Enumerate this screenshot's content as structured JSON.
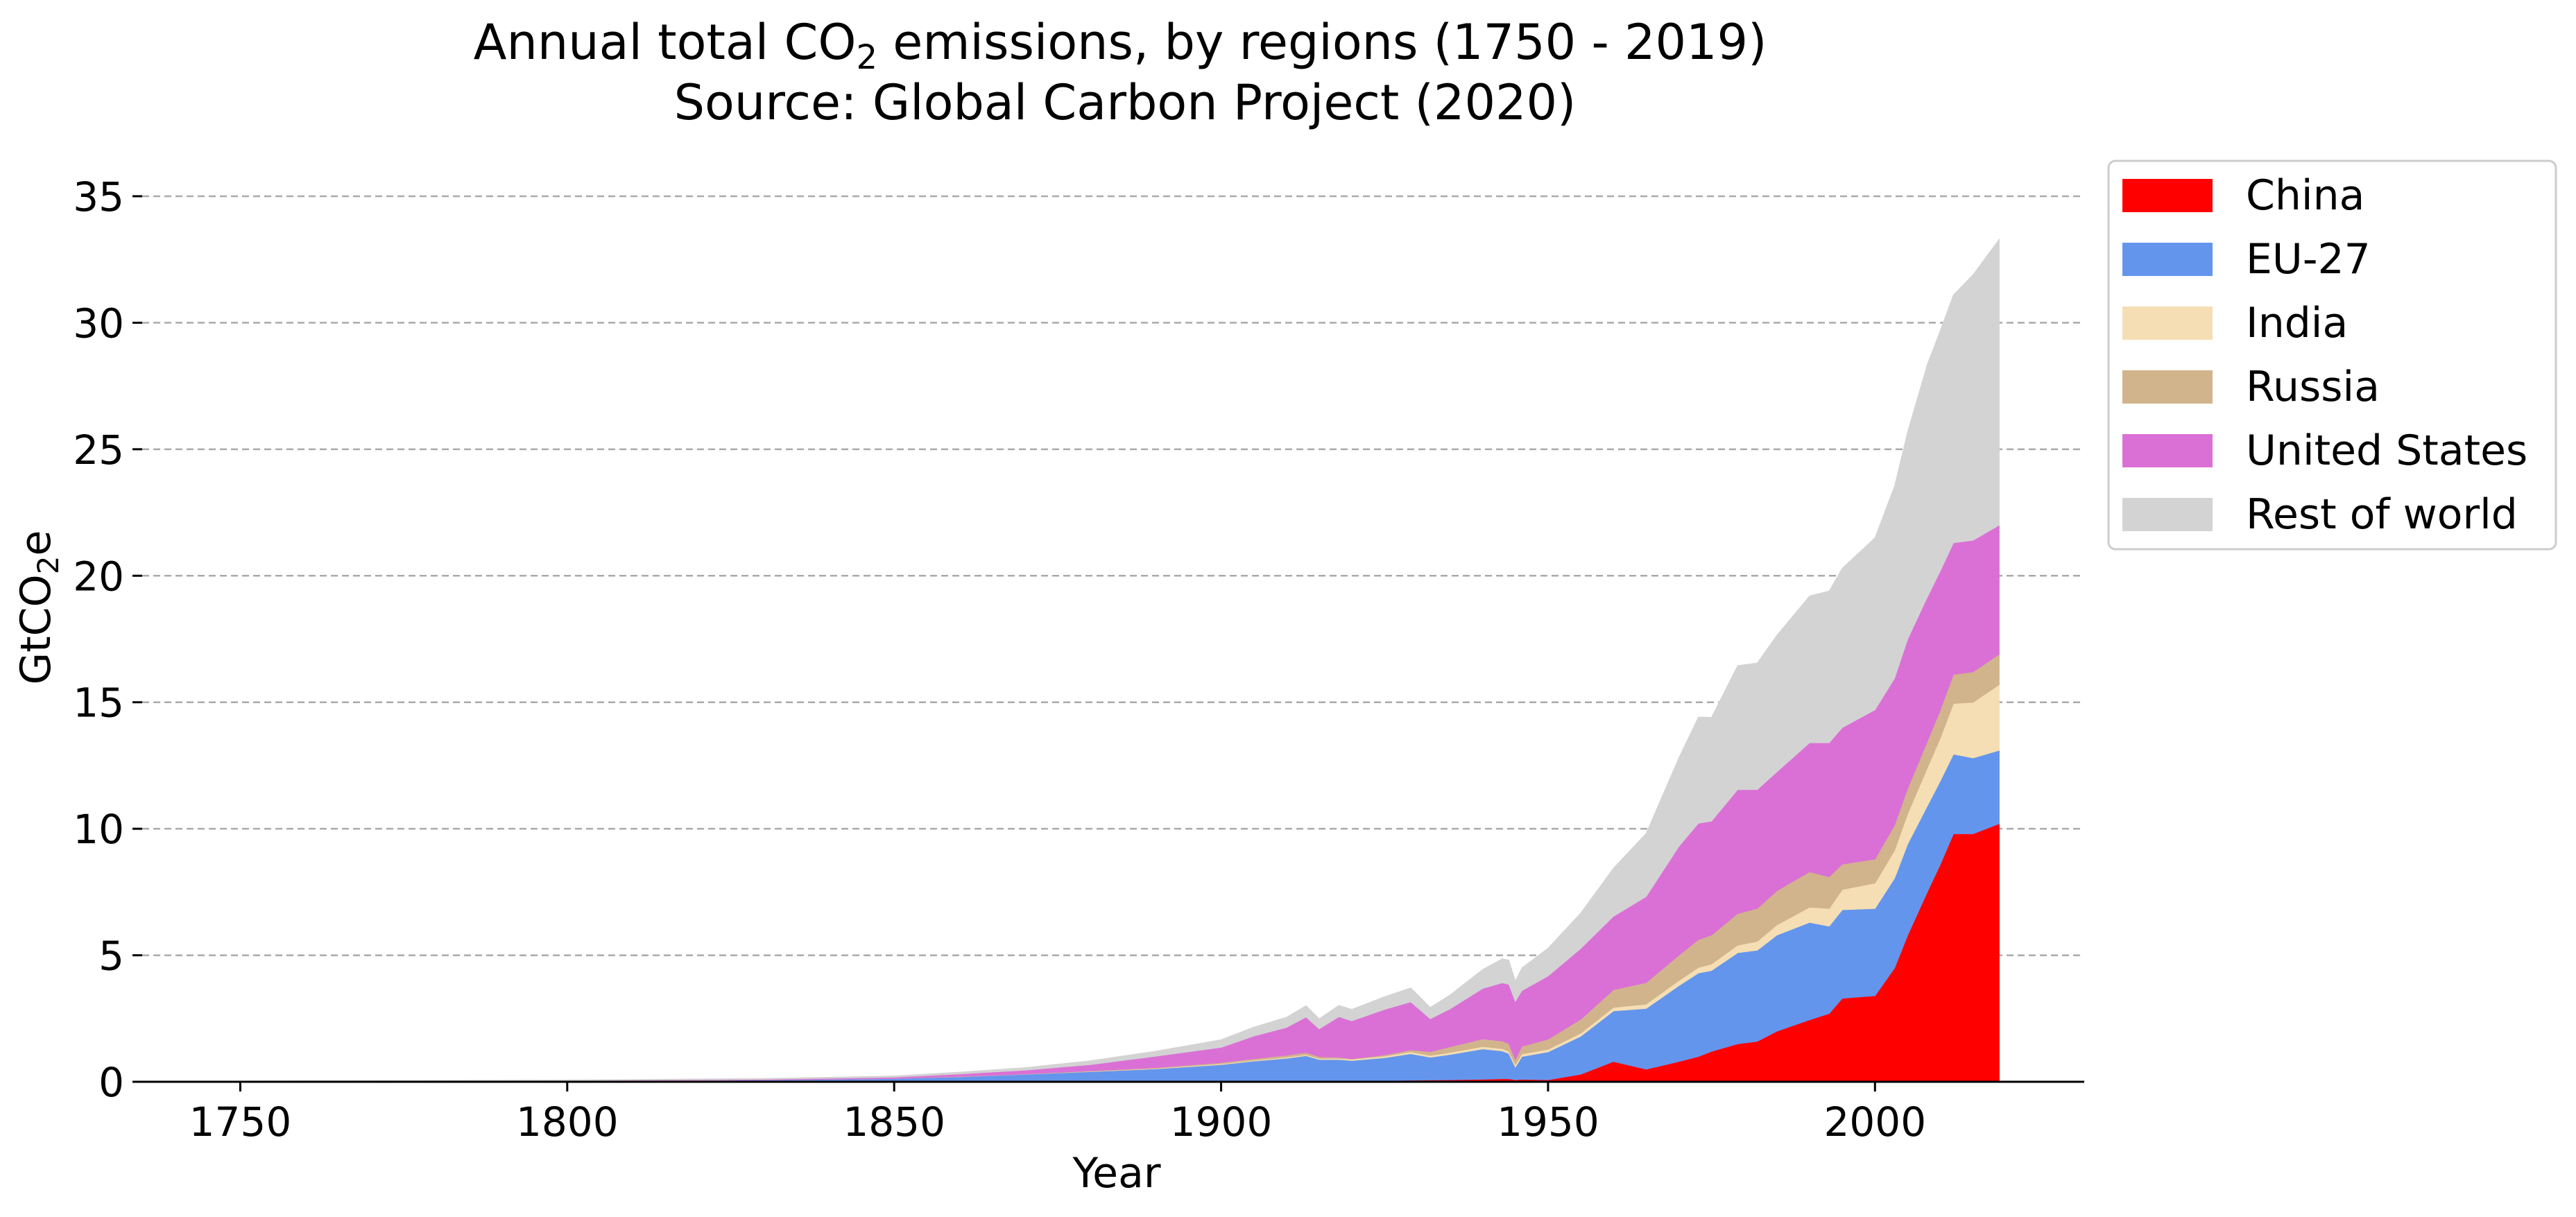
{
  "chart_data": {
    "type": "area",
    "stacked": true,
    "title_line1_main": "Annual total CO",
    "title_line1_sub": "2",
    "title_line1_rest": " emissions, by regions (1750 - 2019)",
    "title_line2": "Source: Global Carbon Project (2020)",
    "xlabel": "Year",
    "ylabel_main": "GtCO",
    "ylabel_sub": "2",
    "ylabel_rest": "e",
    "xlim": [
      1735,
      2032
    ],
    "ylim": [
      0,
      37
    ],
    "xticks": [
      "1750",
      "1800",
      "1850",
      "1900",
      "1950",
      "2000"
    ],
    "yticks": [
      "0",
      "5",
      "10",
      "15",
      "20",
      "25",
      "30",
      "35"
    ],
    "grid": "horizontal dashed",
    "legend_position": "outside right, top",
    "x": [
      1750,
      1800,
      1830,
      1850,
      1860,
      1870,
      1880,
      1890,
      1900,
      1905,
      1910,
      1913,
      1915,
      1918,
      1920,
      1925,
      1929,
      1932,
      1935,
      1940,
      1943,
      1944,
      1945,
      1946,
      1950,
      1955,
      1960,
      1965,
      1970,
      1973,
      1975,
      1979,
      1982,
      1985,
      1990,
      1993,
      1995,
      2000,
      2003,
      2005,
      2008,
      2010,
      2012,
      2015,
      2019
    ],
    "series": [
      {
        "name": "China",
        "color": "#ff0000",
        "values": [
          0,
          0,
          0,
          0,
          0,
          0,
          0,
          0.01,
          0.02,
          0.02,
          0.03,
          0.03,
          0.03,
          0.03,
          0.04,
          0.05,
          0.06,
          0.07,
          0.08,
          0.1,
          0.12,
          0.12,
          0.08,
          0.1,
          0.08,
          0.3,
          0.8,
          0.5,
          0.8,
          1.0,
          1.2,
          1.5,
          1.6,
          2.0,
          2.45,
          2.7,
          3.3,
          3.4,
          4.5,
          5.8,
          7.5,
          8.6,
          9.8,
          9.8,
          10.2
        ]
      },
      {
        "name": "EU-27",
        "color": "#6495ed",
        "values": [
          0.01,
          0.04,
          0.07,
          0.13,
          0.2,
          0.3,
          0.4,
          0.5,
          0.66,
          0.8,
          0.9,
          1.0,
          0.85,
          0.85,
          0.8,
          0.9,
          1.05,
          0.9,
          1.0,
          1.2,
          1.1,
          1.0,
          0.5,
          0.9,
          1.1,
          1.5,
          2.0,
          2.4,
          3.0,
          3.3,
          3.2,
          3.6,
          3.6,
          3.8,
          3.85,
          3.45,
          3.5,
          3.45,
          3.55,
          3.6,
          3.4,
          3.3,
          3.15,
          3.0,
          2.9
        ]
      },
      {
        "name": "India",
        "color": "#f5deb3",
        "values": [
          0,
          0,
          0,
          0,
          0,
          0,
          0.01,
          0.02,
          0.03,
          0.03,
          0.04,
          0.04,
          0.04,
          0.04,
          0.05,
          0.06,
          0.07,
          0.07,
          0.08,
          0.09,
          0.09,
          0.09,
          0.1,
          0.1,
          0.1,
          0.12,
          0.14,
          0.17,
          0.2,
          0.22,
          0.25,
          0.3,
          0.35,
          0.4,
          0.6,
          0.7,
          0.8,
          1.0,
          1.1,
          1.2,
          1.5,
          1.7,
          2.0,
          2.2,
          2.6
        ]
      },
      {
        "name": "Russia",
        "color": "#d2b48c",
        "values": [
          0,
          0,
          0,
          0,
          0.01,
          0.01,
          0.02,
          0.03,
          0.05,
          0.06,
          0.08,
          0.09,
          0.07,
          0.05,
          0.02,
          0.05,
          0.08,
          0.15,
          0.22,
          0.3,
          0.3,
          0.3,
          0.2,
          0.3,
          0.4,
          0.55,
          0.7,
          0.85,
          1.0,
          1.1,
          1.15,
          1.25,
          1.3,
          1.35,
          1.4,
          1.25,
          1.0,
          0.95,
          1.0,
          1.0,
          1.05,
          1.1,
          1.15,
          1.2,
          1.2
        ]
      },
      {
        "name": "United States",
        "color": "#da70d6",
        "values": [
          0,
          0.01,
          0.03,
          0.05,
          0.1,
          0.15,
          0.25,
          0.45,
          0.6,
          0.9,
          1.1,
          1.4,
          1.1,
          1.6,
          1.5,
          1.8,
          1.9,
          1.3,
          1.5,
          2.0,
          2.3,
          2.35,
          2.3,
          2.2,
          2.5,
          2.8,
          2.9,
          3.4,
          4.3,
          4.6,
          4.5,
          4.9,
          4.7,
          4.7,
          5.1,
          5.3,
          5.4,
          5.9,
          5.8,
          5.9,
          5.7,
          5.5,
          5.2,
          5.2,
          5.1
        ]
      },
      {
        "name": "Rest of world",
        "color": "#d3d3d3",
        "values": [
          0.02,
          0.02,
          0.03,
          0.05,
          0.07,
          0.1,
          0.15,
          0.2,
          0.3,
          0.35,
          0.4,
          0.45,
          0.4,
          0.45,
          0.45,
          0.5,
          0.55,
          0.45,
          0.55,
          0.75,
          0.95,
          0.95,
          0.8,
          0.9,
          1.1,
          1.4,
          1.9,
          2.5,
          3.5,
          4.2,
          4.1,
          4.9,
          5.0,
          5.4,
          5.8,
          6.0,
          6.3,
          6.8,
          7.6,
          8.2,
          9.2,
          9.5,
          9.8,
          10.5,
          11.3
        ]
      }
    ]
  }
}
